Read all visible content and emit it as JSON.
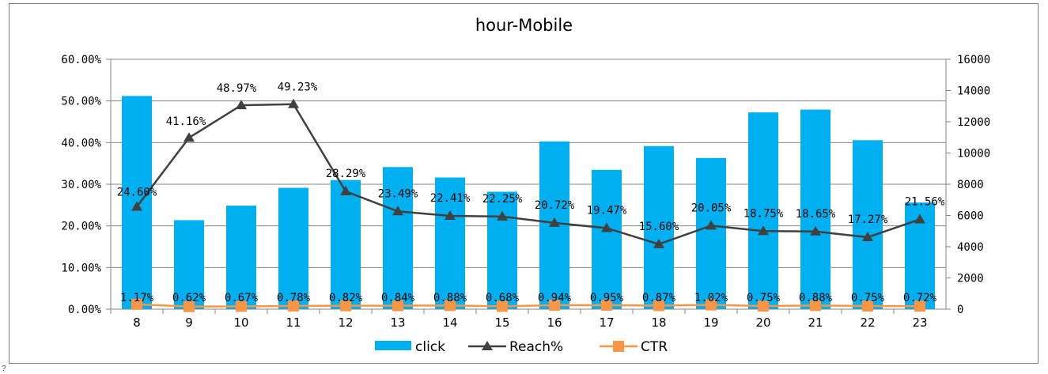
{
  "chart_data": {
    "type": "bar",
    "title": "hour-Mobile",
    "categories": [
      "8",
      "9",
      "10",
      "11",
      "12",
      "13",
      "14",
      "15",
      "16",
      "17",
      "18",
      "19",
      "20",
      "21",
      "22",
      "23"
    ],
    "series": [
      {
        "name": "click",
        "type": "bar",
        "axis": "right",
        "color": "#00b0f0",
        "values": [
          13650,
          5700,
          6630,
          7770,
          8270,
          9100,
          8430,
          7520,
          10740,
          8920,
          10440,
          9680,
          12600,
          12780,
          10820,
          6830
        ]
      },
      {
        "name": "Reach%",
        "type": "line",
        "axis": "left",
        "color": "#404040",
        "values": [
          24.6,
          41.16,
          48.97,
          49.23,
          28.29,
          23.49,
          22.41,
          22.25,
          20.72,
          19.47,
          15.6,
          20.05,
          18.75,
          18.65,
          17.27,
          21.56
        ],
        "labels": [
          "24.60%",
          "41.16%",
          "48.97%",
          "49.23%",
          "28.29%",
          "23.49%",
          "22.41%",
          "22.25%",
          "20.72%",
          "19.47%",
          "15.60%",
          "20.05%",
          "18.75%",
          "18.65%",
          "17.27%",
          "21.56%"
        ]
      },
      {
        "name": "CTR",
        "type": "line",
        "axis": "left",
        "color": "#f79646",
        "values": [
          1.17,
          0.62,
          0.67,
          0.78,
          0.82,
          0.84,
          0.88,
          0.68,
          0.94,
          0.95,
          0.87,
          1.02,
          0.75,
          0.88,
          0.75,
          0.72
        ],
        "labels": [
          "1.17%",
          "0.62%",
          "0.67%",
          "0.78%",
          "0.82%",
          "0.84%",
          "0.88%",
          "0.68%",
          "0.94%",
          "0.95%",
          "0.87%",
          "1.02%",
          "0.75%",
          "0.88%",
          "0.75%",
          "0.72%"
        ]
      }
    ],
    "y_left": {
      "range": [
        0,
        60
      ],
      "ticks": [
        "0.00%",
        "10.00%",
        "20.00%",
        "30.00%",
        "40.00%",
        "50.00%",
        "60.00%"
      ]
    },
    "y_right": {
      "range": [
        0,
        16000
      ],
      "ticks": [
        "0",
        "2000",
        "4000",
        "6000",
        "8000",
        "10000",
        "12000",
        "14000",
        "16000"
      ]
    },
    "grid": true,
    "legend": "bottom"
  },
  "footer_text": "?"
}
